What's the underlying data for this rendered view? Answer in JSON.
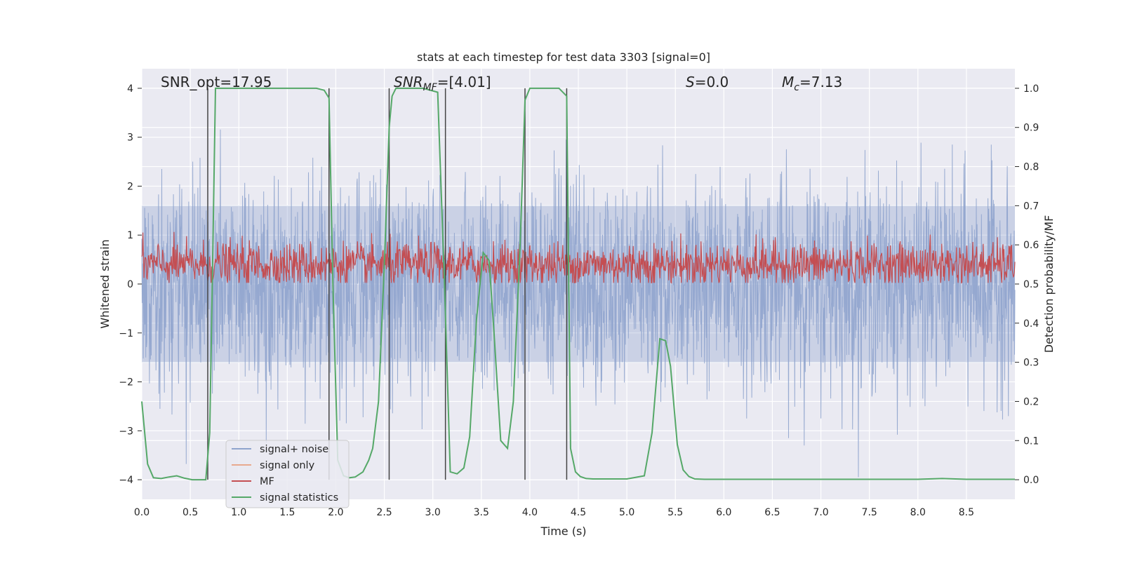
{
  "chart_data": {
    "type": "line",
    "title": "stats at each timestep for test data 3303 [signal=0]",
    "xlabel": "Time (s)",
    "ylabel": "Whitened strain",
    "ylabel_right": "Detection probability/MF",
    "xlim": [
      0,
      9
    ],
    "ylim": [
      -4.4,
      4.4
    ],
    "ylim_right": [
      -0.05,
      1.05
    ],
    "x_ticks": [
      "0.0",
      "0.5",
      "1.0",
      "1.5",
      "2.0",
      "2.5",
      "3.0",
      "3.5",
      "4.0",
      "4.5",
      "5.0",
      "5.5",
      "6.0",
      "6.5",
      "7.0",
      "7.5",
      "8.0",
      "8.5"
    ],
    "x_tick_values": [
      0,
      0.5,
      1,
      1.5,
      2,
      2.5,
      3,
      3.5,
      4,
      4.5,
      5,
      5.5,
      6,
      6.5,
      7,
      7.5,
      8,
      8.5
    ],
    "y_ticks": [
      "−4",
      "−3",
      "−2",
      "−1",
      "0",
      "1",
      "2",
      "3",
      "4"
    ],
    "y_tick_values": [
      -4,
      -3,
      -2,
      -1,
      0,
      1,
      2,
      3,
      4
    ],
    "y_ticks_right": [
      "0.0",
      "0.1",
      "0.2",
      "0.3",
      "0.4",
      "0.5",
      "0.6",
      "0.7",
      "0.8",
      "0.9",
      "1.0"
    ],
    "y_tick_values_right": [
      0,
      0.1,
      0.2,
      0.3,
      0.4,
      0.5,
      0.6,
      0.7,
      0.8,
      0.9,
      1.0
    ],
    "annotations": {
      "snr_opt": "SNR_opt=17.95",
      "snr_mf_sym": "SNR",
      "snr_mf_sub": "MF",
      "snr_mf_val": "=[4.01]",
      "s_sym": "S",
      "s_val": "=0.0",
      "mc_sym": "M",
      "mc_sub": "c",
      "mc_val": "=7.13"
    },
    "legend": {
      "placement": "lower-left",
      "entries": [
        {
          "label": "signal+ noise",
          "color": "#8fa4cd"
        },
        {
          "label": "signal only",
          "color": "#e8a98e"
        },
        {
          "label": "MF",
          "color": "#c44e52"
        },
        {
          "label": "signal statistics",
          "color": "#55a868"
        }
      ]
    },
    "noise_series": {
      "name": "signal+ noise",
      "color": "#8fa4cd",
      "amplitude_band": [
        -1.6,
        1.6
      ],
      "peak_range": [
        -4.0,
        4.0
      ]
    },
    "mf_series": {
      "name": "MF",
      "color": "#c44e52",
      "axis": "right",
      "baseline": 0.5,
      "range": [
        0.5,
        0.65
      ]
    },
    "detection_series": {
      "name": "signal statistics",
      "color": "#55a868",
      "axis": "right",
      "x": [
        0,
        0.06,
        0.12,
        0.2,
        0.28,
        0.36,
        0.44,
        0.52,
        0.6,
        0.66,
        0.7,
        0.73,
        0.76,
        0.8,
        1.0,
        1.5,
        1.8,
        1.88,
        1.93,
        1.97,
        2.02,
        2.08,
        2.14,
        2.2,
        2.28,
        2.34,
        2.38,
        2.44,
        2.5,
        2.55,
        2.58,
        2.62,
        2.7,
        2.9,
        3.05,
        3.12,
        3.18,
        3.25,
        3.32,
        3.38,
        3.45,
        3.52,
        3.58,
        3.63,
        3.7,
        3.77,
        3.83,
        3.9,
        3.95,
        4.0,
        4.1,
        4.3,
        4.38,
        4.42,
        4.47,
        4.52,
        4.58,
        4.65,
        4.8,
        5.0,
        5.18,
        5.26,
        5.34,
        5.4,
        5.45,
        5.52,
        5.58,
        5.64,
        5.7,
        5.8,
        6.0,
        7.0,
        8.0,
        8.25,
        8.5,
        9.0
      ],
      "y": [
        0.2,
        0.04,
        0.005,
        0.003,
        0.007,
        0.01,
        0.004,
        0.0,
        0.0,
        0.0,
        0.12,
        0.55,
        1.0,
        1.0,
        1.0,
        1.0,
        1.0,
        0.995,
        0.975,
        0.5,
        0.05,
        0.01,
        0.005,
        0.007,
        0.02,
        0.05,
        0.08,
        0.2,
        0.55,
        0.9,
        0.98,
        1.0,
        1.0,
        1.0,
        0.99,
        0.5,
        0.02,
        0.015,
        0.03,
        0.11,
        0.41,
        0.58,
        0.56,
        0.38,
        0.1,
        0.08,
        0.2,
        0.6,
        0.97,
        1.0,
        1.0,
        1.0,
        0.98,
        0.08,
        0.02,
        0.008,
        0.003,
        0.002,
        0.002,
        0.002,
        0.01,
        0.12,
        0.36,
        0.355,
        0.29,
        0.09,
        0.025,
        0.008,
        0.002,
        0.001,
        0.001,
        0.001,
        0.001,
        0.003,
        0.001,
        0.001
      ]
    },
    "detection_markers": [
      0.68,
      1.93,
      2.55,
      3.13,
      3.95,
      4.38
    ]
  }
}
